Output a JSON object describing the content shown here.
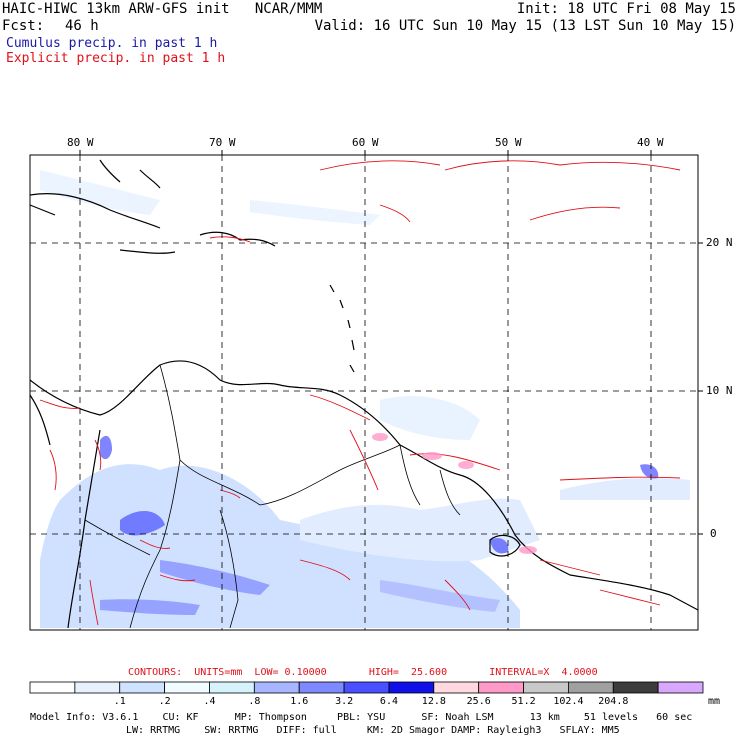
{
  "header": {
    "title_left": "HAIC-HIWC 13km ARW-GFS init   NCAR/MMM",
    "init": "Init: 18 UTC Fri 08 May 15",
    "fcst_label": "Fcst:",
    "fcst_value": "46 h",
    "valid": "Valid: 16 UTC Sun 10 May 15 (13 LST Sun 10 May 15)",
    "cumulus": "Cumulus precip. in past 1 h",
    "explicit": "Explicit precip. in past 1 h"
  },
  "colors": {
    "cumulus_text": "#1a1aa6",
    "explicit_text": "#e0101a",
    "contour": "#e0101a"
  },
  "map": {
    "lon_labels": [
      "80 W",
      "70 W",
      "60 W",
      "50 W",
      "40 W"
    ],
    "lat_labels": [
      "20 N",
      "10 N",
      "0"
    ]
  },
  "contours": {
    "text": "CONTOURS:  UNITS=mm  LOW= 0.10000       HIGH=  25.600       INTERVAL=X  4.0000"
  },
  "colorbar": {
    "colors": [
      "#ffffff",
      "#e8f2ff",
      "#cfe3ff",
      "#f0fcff",
      "#d6f3fb",
      "#a8b6ff",
      "#7e88ff",
      "#4a50ff",
      "#1010e8",
      "#ffd8e0",
      "#ff99c8",
      "#c8c8c8",
      "#a0a0a0",
      "#3c3c3c",
      "#d8a8ff"
    ],
    "labels": [
      ".1",
      ".2",
      ".4",
      ".8",
      "1.6",
      "3.2",
      "6.4",
      "12.8",
      "25.6",
      "51.2",
      "102.4",
      "204.8"
    ],
    "units": "mm"
  },
  "footer": {
    "line1": "Model Info: V3.6.1    CU: KF      MP: Thompson     PBL: YSU      SF: Noah LSM      13 km    51 levels   60 sec",
    "line2": "LW: RRTMG    SW: RRTMG   DIFF: full     KM: 2D Smagor DAMP: Rayleigh3   SFLAY: MM5"
  }
}
